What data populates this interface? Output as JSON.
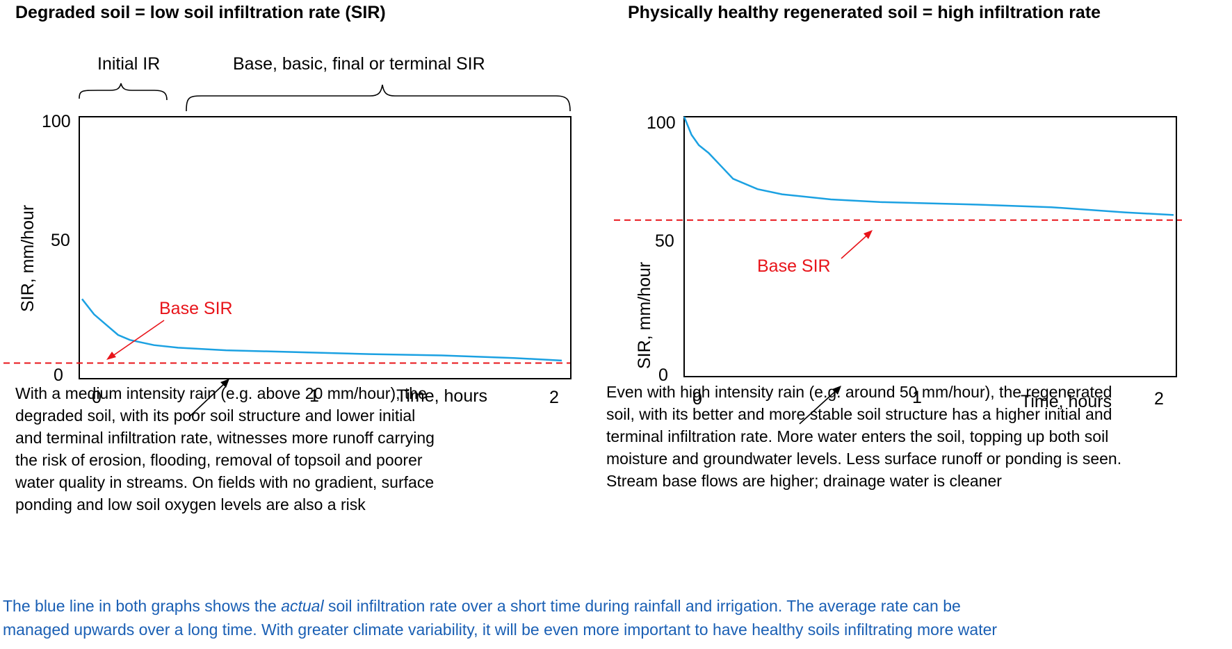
{
  "colors": {
    "curve": "#1ba1e2",
    "base_line": "#e8141a",
    "footnote": "#1a5fb4",
    "frame": "#000000"
  },
  "chart_data": [
    {
      "type": "line",
      "title": "Degraded soil = low soil infiltration rate (SIR)",
      "xlabel": "Time, hours",
      "ylabel": "SIR, mm/hour",
      "xlim": [
        0,
        2
      ],
      "ylim": [
        0,
        100
      ],
      "xticks": [
        "0",
        "1",
        "2"
      ],
      "yticks": [
        "100",
        "50",
        "0"
      ],
      "brace_labels": [
        "Initial IR",
        "Base, basic, final or terminal SIR"
      ],
      "base_sir": {
        "label": "Base SIR",
        "value": 5
      },
      "series": [
        {
          "name": "actual SIR",
          "x": [
            0,
            0.05,
            0.1,
            0.15,
            0.2,
            0.3,
            0.4,
            0.6,
            0.8,
            1.0,
            1.2,
            1.5,
            1.8,
            2.0
          ],
          "y": [
            30,
            24,
            20,
            16,
            14,
            12,
            11,
            10,
            9.5,
            9,
            8.5,
            8,
            7,
            6
          ]
        }
      ]
    },
    {
      "type": "line",
      "title": "Physically healthy regenerated soil = high infiltration rate",
      "xlabel": "Time, hours",
      "ylabel": "SIR, mm/hour",
      "xlim": [
        0,
        2
      ],
      "ylim": [
        0,
        100
      ],
      "xticks": [
        "0",
        "1",
        "2"
      ],
      "yticks": [
        "100",
        "50",
        "0"
      ],
      "base_sir": {
        "label": "Base SIR",
        "value": 60
      },
      "series": [
        {
          "name": "actual SIR",
          "x": [
            0,
            0.03,
            0.06,
            0.1,
            0.15,
            0.2,
            0.3,
            0.4,
            0.6,
            0.8,
            1.0,
            1.2,
            1.5,
            1.8,
            2.0
          ],
          "y": [
            100,
            93,
            89,
            86,
            81,
            76,
            72,
            70,
            68,
            67,
            66.5,
            66,
            65,
            63,
            62
          ]
        }
      ]
    }
  ],
  "annotations": {
    "left": [
      "With a medium intensity rain (e.g. above 20 mm/hour), the",
      "degraded soil, with  its poor soil structure and lower initial",
      "and terminal infiltration rate, witnesses more runoff carrying",
      "the risk of erosion, flooding, removal of topsoil and poorer",
      "water quality in streams.  On fields with no gradient, surface",
      "ponding and low soil oxygen levels are also a risk"
    ],
    "right": [
      "Even with high intensity rain (e.g. around 50 mm/hour), the regenerated",
      "soil, with its better and more stable soil structure has a higher initial and",
      "terminal infiltration rate. More water enters the soil, topping up both soil",
      "moisture and groundwater levels. Less surface runoff or ponding is seen.",
      "Stream base flows are higher; drainage water is cleaner"
    ]
  },
  "footnote": {
    "line1_pre": "The blue line in both graphs shows the ",
    "line1_em": "actual",
    "line1_post": " soil infiltration rate over a short time during rainfall and irrigation.  The average rate can be",
    "line2": "managed upwards over a long time. With greater climate variability, it will be even more important to have healthy soils infiltrating more water"
  }
}
